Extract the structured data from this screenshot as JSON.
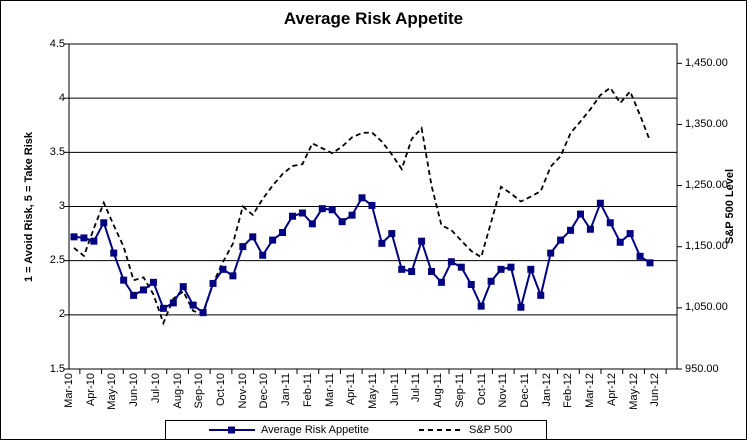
{
  "title": "Average Risk Appetite",
  "left_axis": {
    "title": "1 = Avoid Risk, 5 = Take Risk",
    "tick_labels": [
      "4.5",
      "4",
      "3.5",
      "3",
      "2.5",
      "2",
      "1.5"
    ],
    "min": 1.5,
    "max": 4.5,
    "step": 0.5
  },
  "right_axis": {
    "title": "S&P 500 Level",
    "tick_labels": [
      "1,450.00",
      "1,350.00",
      "1,250.00",
      "1,150.00",
      "1,050.00",
      "950.00"
    ],
    "min": 950,
    "max": 1450,
    "step": 100
  },
  "x_axis": {
    "labels": [
      "Mar-10",
      "Apr-10",
      "May-10",
      "Jun-10",
      "Jul-10",
      "Aug-10",
      "Sep-10",
      "Oct-10",
      "Nov-10",
      "Dec-10",
      "Jan-11",
      "Feb-11",
      "Mar-11",
      "Apr-11",
      "May-11",
      "Jun-11",
      "Jul-11",
      "Aug-11",
      "Sep-11",
      "Oct-11",
      "Nov-11",
      "Dec-11",
      "Jan-12",
      "Feb-12",
      "Mar-12",
      "Apr-12",
      "May-12",
      "Jun-12"
    ]
  },
  "legend": {
    "risk_label": "Average Risk Appetite",
    "sp_label": "S&P 500"
  },
  "colors": {
    "risk_line": "#000080",
    "sp_line": "#000000",
    "grid": "#000000",
    "background": "#ffffff"
  },
  "chart_data": {
    "type": "line",
    "title": "Average Risk Appetite",
    "frequency": "biweekly",
    "x_range": [
      "Mar-10",
      "Jun-12"
    ],
    "x_tick_labels": [
      "Mar-10",
      "Apr-10",
      "May-10",
      "Jun-10",
      "Jul-10",
      "Aug-10",
      "Sep-10",
      "Oct-10",
      "Nov-10",
      "Dec-10",
      "Jan-11",
      "Feb-11",
      "Mar-11",
      "Apr-11",
      "May-11",
      "Jun-11",
      "Jul-11",
      "Aug-11",
      "Sep-11",
      "Oct-11",
      "Nov-11",
      "Dec-11",
      "Jan-12",
      "Feb-12",
      "Mar-12",
      "Apr-12",
      "May-12",
      "Jun-12"
    ],
    "left_ylabel": "1 = Avoid Risk, 5 = Take Risk",
    "right_ylabel": "S&P 500 Level",
    "left_ylim": [
      1.5,
      4.5
    ],
    "right_ylim": [
      950,
      1450
    ],
    "grid": "horizontal",
    "legend_position": "bottom",
    "series": [
      {
        "name": "Average Risk Appetite",
        "axis": "left",
        "style": "solid",
        "marker": "square",
        "values": [
          2.72,
          2.71,
          2.68,
          2.85,
          2.57,
          2.32,
          2.18,
          2.23,
          2.3,
          2.06,
          2.11,
          2.26,
          2.09,
          2.02,
          2.29,
          2.42,
          2.36,
          2.63,
          2.72,
          2.55,
          2.69,
          2.76,
          2.91,
          2.94,
          2.84,
          2.98,
          2.97,
          2.86,
          2.92,
          3.08,
          3.01,
          2.66,
          2.75,
          2.42,
          2.4,
          2.68,
          2.4,
          2.3,
          2.49,
          2.44,
          2.28,
          2.08,
          2.31,
          2.42,
          2.44,
          2.07,
          2.42,
          2.18,
          2.57,
          2.69,
          2.78,
          2.93,
          2.79,
          3.03,
          2.85,
          2.67,
          2.75,
          2.54,
          2.48
        ]
      },
      {
        "name": "S&P 500",
        "axis": "right",
        "style": "dashed",
        "marker": "none",
        "values": [
          1148,
          1135,
          1180,
          1222,
          1185,
          1150,
          1095,
          1100,
          1072,
          1025,
          1065,
          1077,
          1045,
          1040,
          1090,
          1125,
          1155,
          1216,
          1202,
          1228,
          1250,
          1269,
          1282,
          1285,
          1319,
          1311,
          1303,
          1314,
          1329,
          1336,
          1337,
          1322,
          1301,
          1277,
          1326,
          1344,
          1250,
          1185,
          1177,
          1160,
          1143,
          1133,
          1190,
          1248,
          1237,
          1224,
          1232,
          1241,
          1281,
          1298,
          1336,
          1355,
          1375,
          1398,
          1410,
          1385,
          1404,
          1365,
          1323
        ]
      }
    ]
  }
}
